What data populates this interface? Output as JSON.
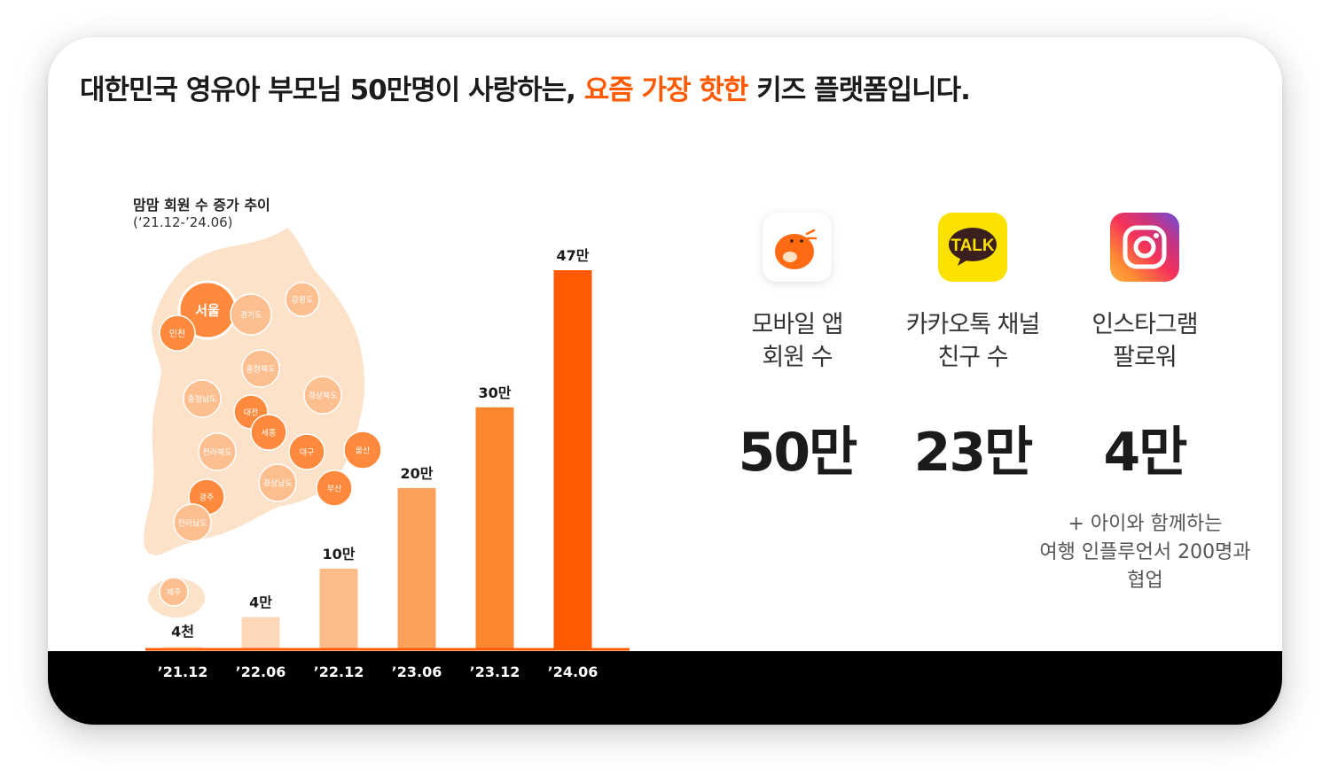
{
  "headline": {
    "prefix": "대한민국 영유아 부모님 50만명이 사랑하는, ",
    "highlight": "요즘 가장 핫한",
    "suffix": " 키즈 플랫폼입니다."
  },
  "chart_title": "맘맘 회원 수 증가 추이",
  "chart_subtitle": "(‘21.12-’24.06)",
  "colors": {
    "accent": "#ff5a00",
    "map": "#fbe2c8",
    "bar_colors": [
      "#fde9d6",
      "#fdd7b8",
      "#fdbb8a",
      "#fca15c",
      "#fb862e",
      "#ff5a00"
    ]
  },
  "map_regions": [
    {
      "name": "서울"
    },
    {
      "name": "인천"
    },
    {
      "name": "경기도"
    },
    {
      "name": "강원도"
    },
    {
      "name": "충청북도"
    },
    {
      "name": "충청남도"
    },
    {
      "name": "대전"
    },
    {
      "name": "세종"
    },
    {
      "name": "경상북도"
    },
    {
      "name": "전라북도"
    },
    {
      "name": "대구"
    },
    {
      "name": "울산"
    },
    {
      "name": "경상남도"
    },
    {
      "name": "부산"
    },
    {
      "name": "광주"
    },
    {
      "name": "전라남도"
    },
    {
      "name": "제주"
    }
  ],
  "chart_data": {
    "type": "bar",
    "title": "맘맘 회원 수 증가 추이",
    "subtitle": "(‘21.12-’24.06)",
    "categories": [
      "’21.12",
      "’22.06",
      "’22.12",
      "’23.06",
      "’23.12",
      "’24.06"
    ],
    "values": [
      0.4,
      4,
      10,
      20,
      30,
      47
    ],
    "value_labels": [
      "4천",
      "4만",
      "10만",
      "20만",
      "30만",
      "47만"
    ],
    "unit": "만",
    "ylim": [
      0,
      47
    ],
    "grid": false,
    "legend": "none"
  },
  "stats": [
    {
      "icon": "momom-app-icon",
      "label_line1": "모바일 앱",
      "label_line2": "회원 수",
      "value": "50만"
    },
    {
      "icon": "kakaotalk-icon",
      "label_line1": "카카오톡 채널",
      "label_line2": "친구 수",
      "value": "23만",
      "icon_text": "TALK"
    },
    {
      "icon": "instagram-icon",
      "label_line1": "인스타그램",
      "label_line2": "팔로워",
      "value": "4만"
    }
  ],
  "note": {
    "line1": "+ 아이와 함께하는",
    "line2": "여행 인플루언서 200명과",
    "line3": "협업"
  }
}
